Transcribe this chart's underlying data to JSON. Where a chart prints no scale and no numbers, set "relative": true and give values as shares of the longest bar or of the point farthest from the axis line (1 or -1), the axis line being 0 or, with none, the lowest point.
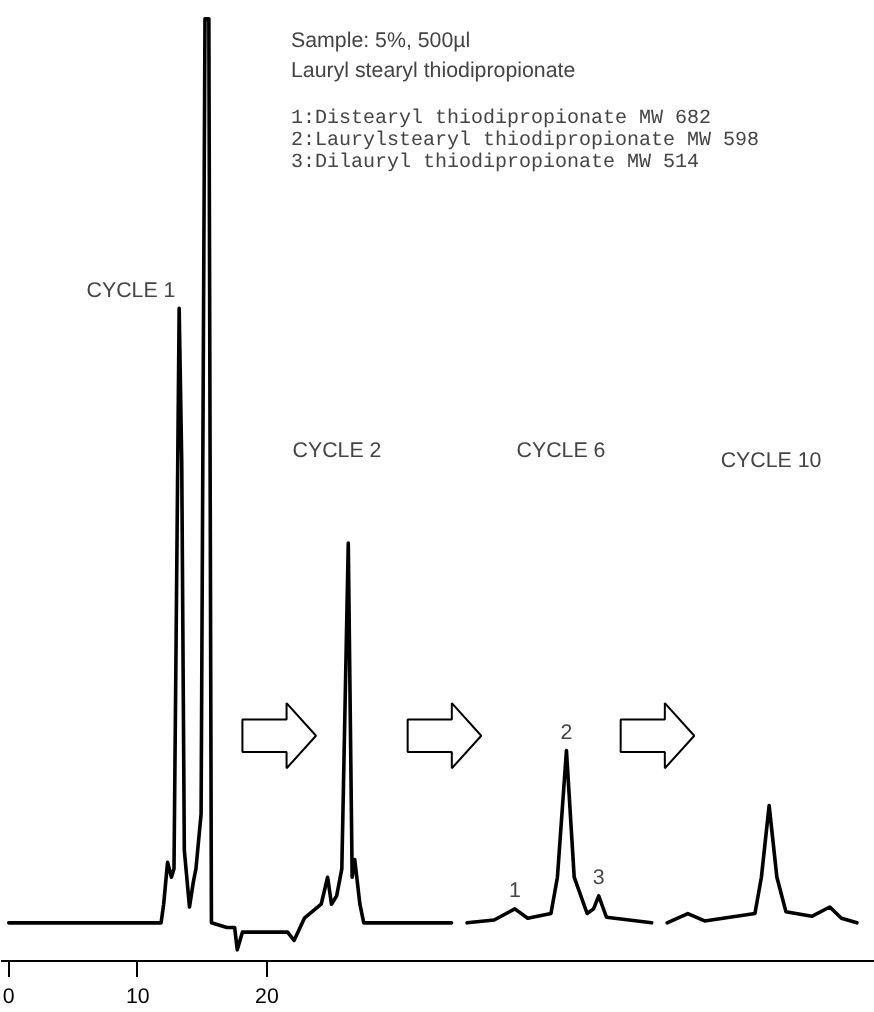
{
  "chart_data": {
    "type": "line",
    "relative": true,
    "title": "Sample: 5%, 500µl",
    "subtitle": "Lauryl stearyl thiodipropionate",
    "x": [
      0,
      2.5,
      11.8,
      12.0,
      12.3,
      12.6,
      12.8,
      13.2,
      13.4,
      13.6,
      14.0,
      14.3,
      14.5,
      14.9,
      15.2,
      15.5,
      15.7,
      16.9,
      17.5,
      17.7,
      18.1,
      19.0,
      21.6,
      22.1,
      22.9,
      24.2,
      24.7,
      25.0,
      25.4,
      25.8,
      26.3,
      26.6,
      26.8,
      27.2,
      27.5,
      34.3,
      35.0,
      35.5,
      37.6,
      39.2,
      40.2,
      42.0,
      42.5,
      43.2,
      43.8,
      44.8,
      45.3,
      45.7,
      46.3,
      49.8,
      50.4,
      51.0,
      52.6,
      53.9,
      57.8,
      58.3,
      58.9,
      59.5,
      60.2,
      62.2,
      63.6,
      64.5,
      65.7
    ],
    "series": [
      {
        "color": "#000000",
        "values": [
          0.029,
          0.029,
          0.029,
          0.049,
          0.094,
          0.078,
          0.087,
          0.689,
          0.524,
          0.107,
          0.046,
          0.073,
          0.087,
          0.146,
          1,
          1,
          0.029,
          0.024,
          0.024,
          0,
          0.019,
          0.019,
          0.019,
          0.01,
          0.034,
          0.049,
          0.078,
          0.049,
          0.058,
          0.087,
          0.437,
          0.078,
          0.097,
          0.049,
          0.029,
          0.029,
          null,
          0.029,
          0.032,
          0.044,
          0.034,
          0.039,
          0.078,
          0.214,
          0.078,
          0.039,
          0.044,
          0.058,
          0.035,
          0.029,
          null,
          0.029,
          0.039,
          0.031,
          0.039,
          0.078,
          0.155,
          0.078,
          0.041,
          0.036,
          0.046,
          0.034,
          0.029
        ]
      }
    ],
    "xlim": [
      -0.6,
      67.1
    ],
    "xticks": [
      0,
      10,
      20
    ],
    "tick_labels": "x",
    "grid": false,
    "marker": "none",
    "line_style": "solid",
    "annotations": [
      "1:Distearyl thiodipropionate      MW 682",
      "2:Laurylstearyl thiodipropionate  MW 598",
      "3:Dilauryl thiodipropionate       MW 514",
      "CYCLE 1",
      "CYCLE 2",
      "CYCLE 6",
      "CYCLE 10",
      {
        "text": "1",
        "x": 39.2,
        "y": 0.044
      },
      {
        "text": "2",
        "x": 43.2,
        "y": 0.214
      },
      {
        "text": "3",
        "x": 45.7,
        "y": 0.058
      }
    ]
  }
}
